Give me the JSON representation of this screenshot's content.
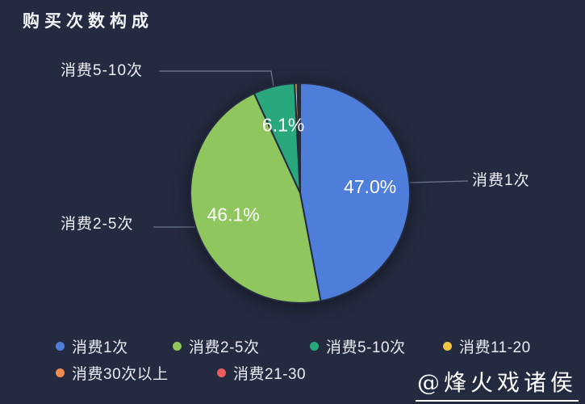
{
  "title": "购买次数构成",
  "watermark": {
    "text": "@烽火戏诸侯"
  },
  "colors": {
    "background": "#242a40",
    "leader_line": "#6f7792",
    "slice_border": "#242a40",
    "pct_label_text": "#ffffff",
    "title_text": "#f2f4f8",
    "legend_text": "#e9ecf2"
  },
  "chart_data": {
    "type": "pie",
    "title": "购买次数构成",
    "legend_position": "bottom-left",
    "labels_outside": [
      "消费1次",
      "消费2-5次",
      "消费5-10次"
    ],
    "items": [
      {
        "label": "消费1次",
        "value_pct": 47.0,
        "pct_label": "47.0%",
        "color": "#4e7dda"
      },
      {
        "label": "消费2-5次",
        "value_pct": 46.1,
        "pct_label": "46.1%",
        "color": "#8fc65e"
      },
      {
        "label": "消费5-10次",
        "value_pct": 6.1,
        "pct_label": "6.1%",
        "color": "#28a87c"
      },
      {
        "label": "消费11-20",
        "value_pct": 0.4,
        "pct_label": null,
        "color": "#eec643"
      },
      {
        "label": "消费30次以上",
        "value_pct": 0.2,
        "pct_label": null,
        "color": "#f08c4e"
      },
      {
        "label": "消费21-30",
        "value_pct": 0.2,
        "pct_label": null,
        "color": "#ee5c5c"
      }
    ]
  }
}
